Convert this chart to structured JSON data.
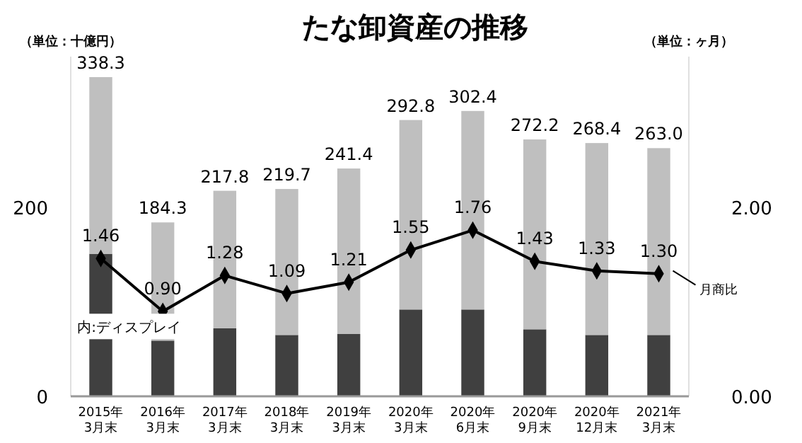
{
  "chart_data": {
    "type": "bar",
    "title": "たな卸資産の推移",
    "ylabel": "（単位：十億円）",
    "y2label": "（単位：ヶ月）",
    "categories": [
      "2015年\n3月末",
      "2016年\n3月末",
      "2017年\n3月末",
      "2018年\n3月末",
      "2019年\n3月末",
      "2020年\n3月末",
      "2020年\n6月末",
      "2020年\n9月末",
      "2020年\n12月末",
      "2021年\n3月末"
    ],
    "stacked": true,
    "series": [
      {
        "name": "内:ディスプレイ",
        "color": "#404040",
        "values": [
          151,
          59,
          72,
          65,
          66,
          92,
          92,
          71,
          65,
          65
        ]
      },
      {
        "color": "#bfbfbf",
        "values": [
          187.3,
          125.3,
          145.8,
          154.7,
          175.4,
          200.8,
          210.4,
          201.2,
          203.4,
          198
        ]
      },
      {
        "name": "月商比",
        "type": "line",
        "axis": "y2",
        "color": "#000000",
        "marker": "diamond",
        "values": [
          1.46,
          0.9,
          1.28,
          1.09,
          1.21,
          1.55,
          1.76,
          1.43,
          1.33,
          1.3
        ],
        "value_labels": [
          "1.46",
          "0.90",
          "1.28",
          "1.09",
          "1.21",
          "1.55",
          "1.76",
          "1.43",
          "1.33",
          "1.30"
        ]
      }
    ],
    "totals": [
      "338.3",
      "184.3",
      "217.8",
      "219.7",
      "241.4",
      "292.8",
      "302.4",
      "272.2",
      "268.4",
      "263.0"
    ],
    "ylim": [
      0,
      360
    ],
    "yticks": [
      0,
      200
    ],
    "y2lim": [
      0,
      3.6
    ],
    "y2ticks": [
      {
        "value": 0,
        "label": "0.00"
      },
      {
        "value": 2,
        "label": "2.00"
      }
    ],
    "grid": false
  }
}
